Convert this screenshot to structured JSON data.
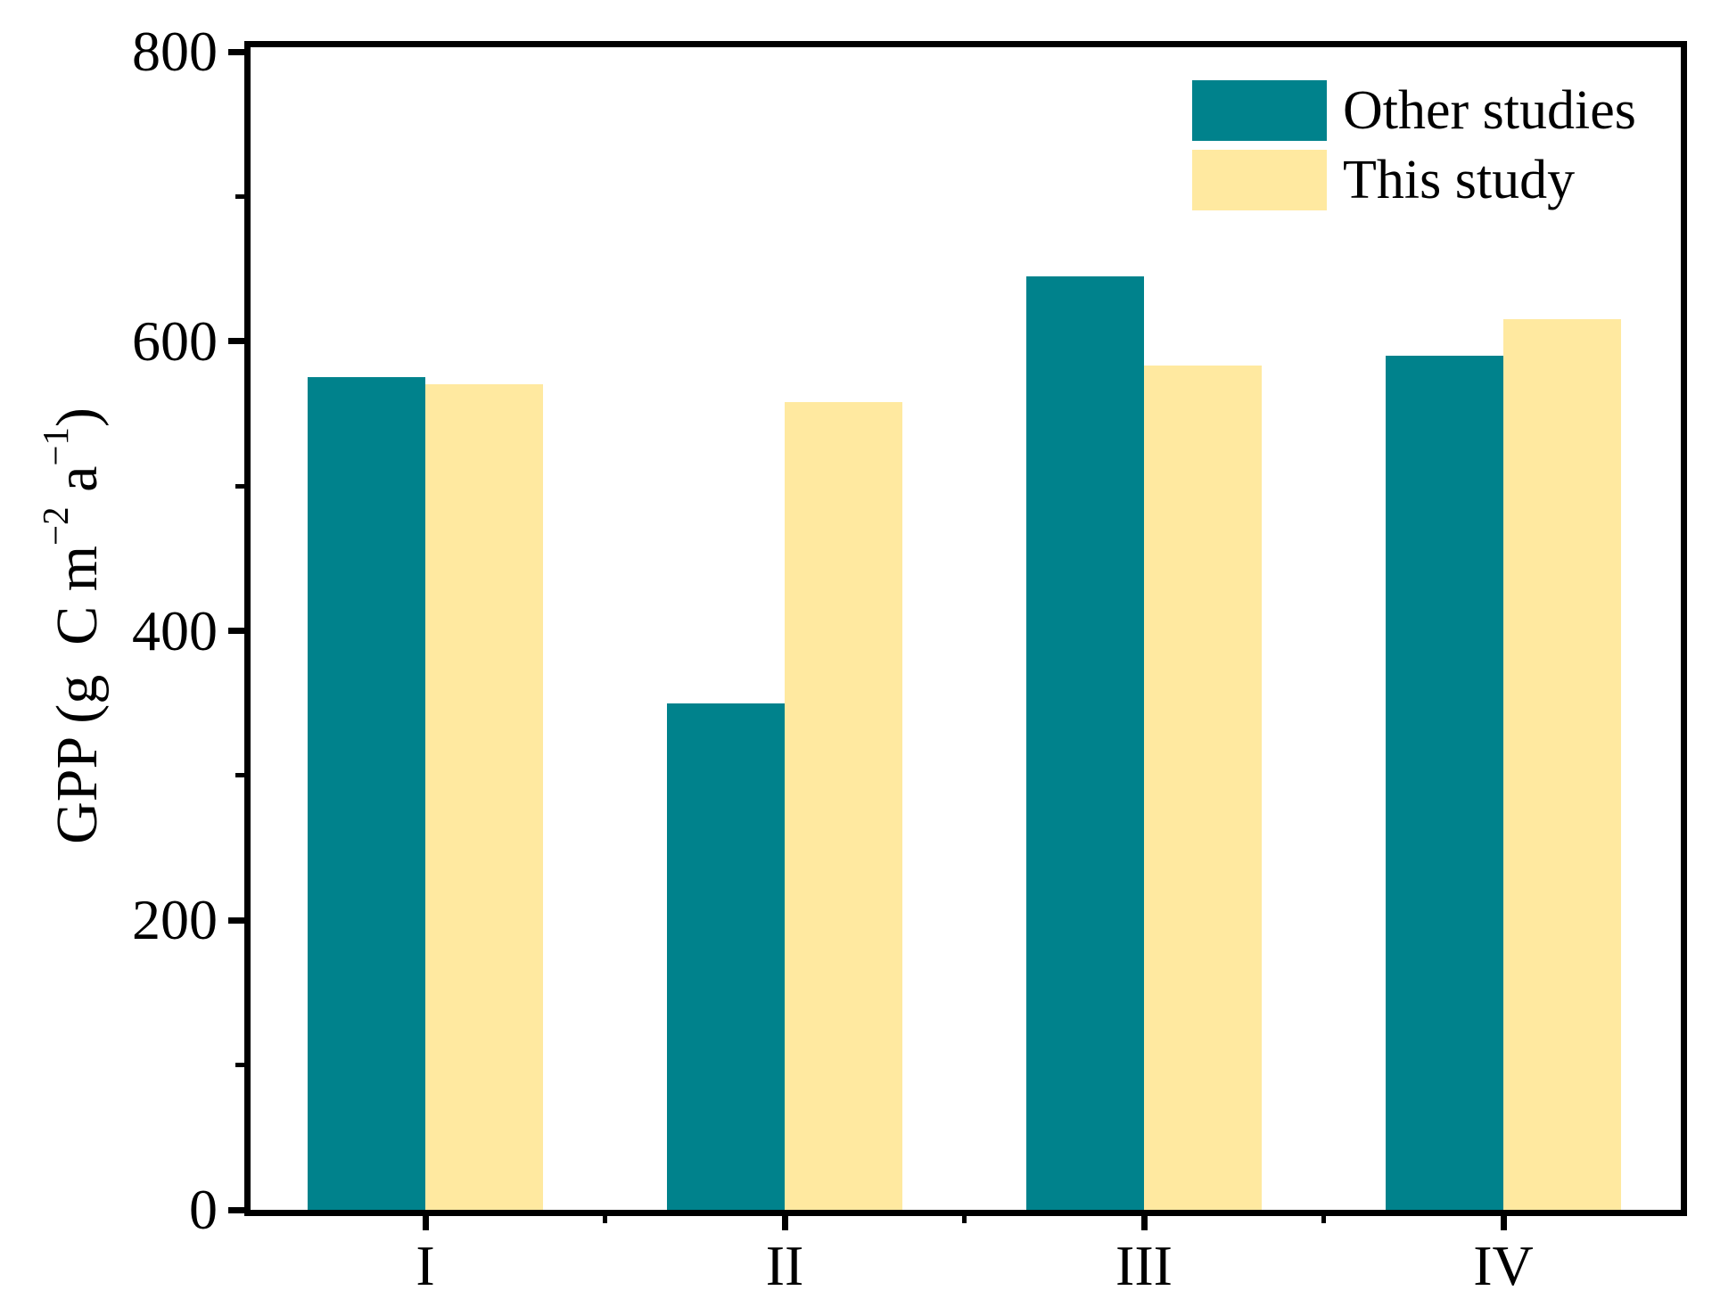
{
  "chart_data": {
    "type": "bar",
    "title": "",
    "categories": [
      "I",
      "II",
      "III",
      "IV"
    ],
    "series": [
      {
        "name": "Other studies",
        "color": "#00828C",
        "values": [
          575,
          350,
          645,
          590
        ]
      },
      {
        "name": "This study",
        "color": "#FFE9A0",
        "values": [
          570,
          558,
          583,
          615
        ]
      }
    ],
    "xlabel": "",
    "ylabel": "GPP (g C m⁻² a⁻¹)",
    "ylabel_segments": [
      {
        "text": "GPP (g C m"
      },
      {
        "text": "−2",
        "sup": true
      },
      {
        "text": " a"
      },
      {
        "text": "−1",
        "sup": true
      },
      {
        "text": ")"
      }
    ],
    "ylim": [
      0,
      800
    ],
    "yticks": [
      0,
      200,
      400,
      600,
      800
    ],
    "yticks_minor": [
      100,
      300,
      500,
      700
    ],
    "grid": false,
    "legend_position": "top-right",
    "axis_color": "#000000",
    "background_color": "#ffffff"
  },
  "legend": {
    "items": [
      {
        "label": "Other studies",
        "color": "#00828C"
      },
      {
        "label": "This study",
        "color": "#FFE9A0"
      }
    ]
  }
}
